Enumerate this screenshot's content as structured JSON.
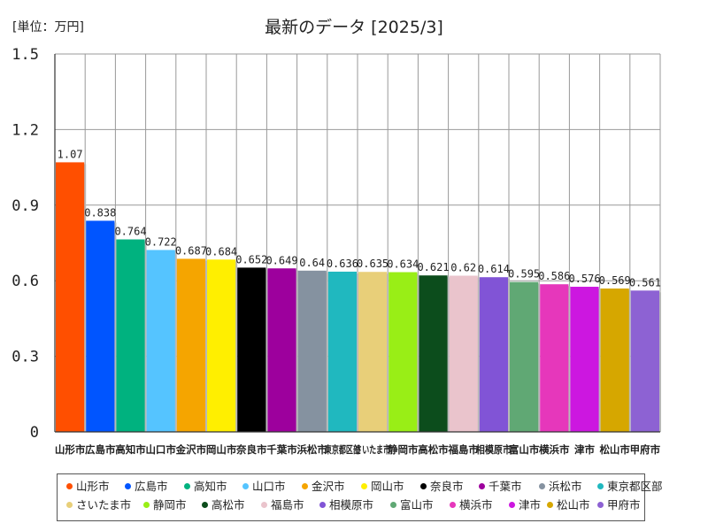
{
  "header": {
    "unit_label": "[単位：万円]",
    "title": "最新のデータ [2025/3]"
  },
  "chart_data": {
    "type": "bar",
    "title": "最新のデータ [2025/3]",
    "unit": "[単位：万円]",
    "ylim": [
      0,
      1.5
    ],
    "yticks": [
      0,
      0.3,
      0.6,
      0.9,
      1.2,
      1.5
    ],
    "ytick_labels": [
      "0",
      "0.3",
      "0.6",
      "0.9",
      "1.2",
      "1.5"
    ],
    "grid": true,
    "categories": [
      "山形市",
      "広島市",
      "高知市",
      "山口市",
      "金沢市",
      "岡山市",
      "奈良市",
      "千葉市",
      "浜松市",
      "東京都区部",
      "さいたま市",
      "静岡市",
      "高松市",
      "福島市",
      "相模原市",
      "富山市",
      "横浜市",
      "津市",
      "松山市",
      "甲府市"
    ],
    "tick_labels": [
      "山形市",
      "広島市",
      "高知市",
      "山口市",
      "金沢市",
      "岡山市",
      "奈良市",
      "千葉市",
      "浜松市",
      "東京都区部",
      "さいたま市",
      "静岡市",
      "高松市",
      "福島市",
      "相模原市",
      "富山市",
      "横浜市",
      "津市",
      "松山市",
      "甲府市"
    ],
    "values": [
      1.07,
      0.838,
      0.764,
      0.722,
      0.687,
      0.684,
      0.652,
      0.649,
      0.64,
      0.636,
      0.635,
      0.634,
      0.621,
      0.62,
      0.614,
      0.595,
      0.586,
      0.576,
      0.569,
      0.561
    ],
    "value_labels": [
      "1.07",
      "0.838",
      "0.764",
      "0.722",
      "0.687",
      "0.684",
      "0.652",
      "0.649",
      "0.64",
      "0.636",
      "0.635",
      "0.634",
      "0.621",
      "0.62",
      "0.614",
      "0.595",
      "0.586",
      "0.576",
      "0.569",
      "0.561"
    ],
    "colors": [
      "#ff4f00",
      "#0055ff",
      "#00b27f",
      "#55c4ff",
      "#f5a500",
      "#ffef00",
      "#000000",
      "#9d009d",
      "#8592a0",
      "#20b8bf",
      "#e8cf79",
      "#99ee16",
      "#0c4d1c",
      "#eac4cc",
      "#8154d6",
      "#60a874",
      "#e637bb",
      "#cc17e0",
      "#d6a700",
      "#8d62d3"
    ],
    "legend_position": "bottom"
  }
}
